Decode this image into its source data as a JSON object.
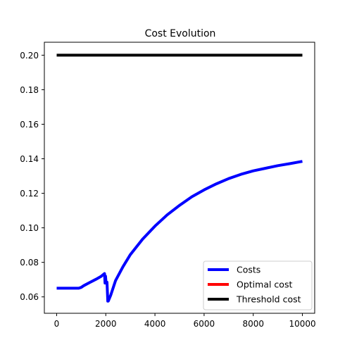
{
  "chart_data": {
    "type": "line",
    "title": "Cost Evolution",
    "xlabel": "",
    "ylabel": "",
    "xlim": [
      -500,
      10500
    ],
    "ylim": [
      0.0505,
      0.2075
    ],
    "xticks": [
      0,
      2000,
      4000,
      6000,
      8000,
      10000
    ],
    "yticks": [
      0.06,
      0.08,
      0.1,
      0.12,
      0.14,
      0.16,
      0.18,
      0.2
    ],
    "xtick_labels": [
      "0",
      "2000",
      "4000",
      "6000",
      "8000",
      "10000"
    ],
    "ytick_labels": [
      "0.06",
      "0.08",
      "0.10",
      "0.12",
      "0.14",
      "0.16",
      "0.18",
      "0.20"
    ],
    "grid": false,
    "legend_position": "lower-right",
    "series": [
      {
        "name": "Costs",
        "color": "#0000ff",
        "x": [
          0,
          500,
          900,
          1000,
          1100,
          1300,
          1600,
          1800,
          1950,
          1970,
          1990,
          2010,
          2050,
          2080,
          2100,
          2200,
          2400,
          2700,
          3000,
          3500,
          4000,
          4500,
          5000,
          5500,
          6000,
          6500,
          7000,
          7500,
          8000,
          8500,
          9000,
          9500,
          10000
        ],
        "y": [
          0.065,
          0.065,
          0.065,
          0.0655,
          0.0665,
          0.068,
          0.0702,
          0.0718,
          0.0735,
          0.068,
          0.072,
          0.0685,
          0.0685,
          0.0575,
          0.0575,
          0.061,
          0.0695,
          0.0775,
          0.0845,
          0.0935,
          0.101,
          0.1075,
          0.113,
          0.118,
          0.122,
          0.1255,
          0.1285,
          0.131,
          0.133,
          0.1345,
          0.136,
          0.1372,
          0.1385
        ]
      },
      {
        "name": "Optimal cost",
        "color": "#ff0000",
        "x": [],
        "y": []
      },
      {
        "name": "Threshold cost",
        "color": "#000000",
        "x": [
          0,
          10000
        ],
        "y": [
          0.2,
          0.2
        ]
      }
    ]
  }
}
